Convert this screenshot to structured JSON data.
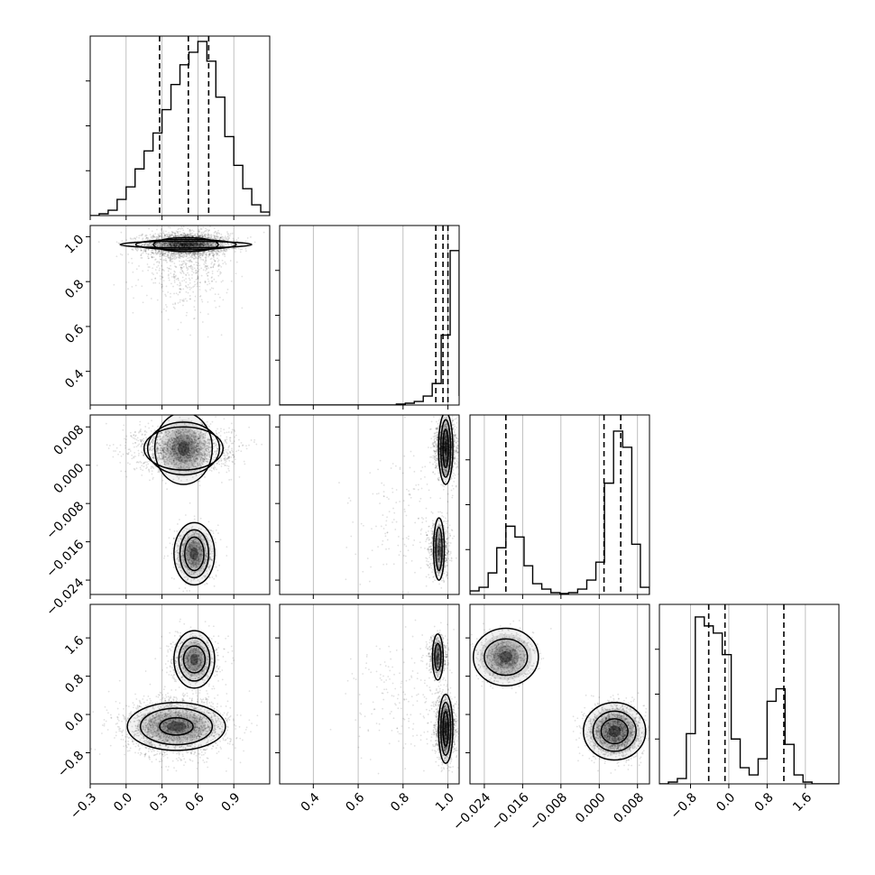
{
  "chart_data": {
    "type": "corner",
    "title": "",
    "params": [
      {
        "name": "",
        "range": [
          -0.3,
          1.2
        ],
        "ticks": [
          -0.3,
          0.0,
          0.3,
          0.6,
          0.9
        ],
        "tick_labels": [
          "−0.3",
          "0.0",
          "0.3",
          "0.6",
          "0.9"
        ],
        "quantiles": [
          0.28,
          0.52,
          0.69
        ]
      },
      {
        "name": "",
        "range": [
          0.25,
          1.05
        ],
        "ticks": [
          0.4,
          0.6,
          0.8,
          1.0
        ],
        "tick_labels": [
          "0.4",
          "0.6",
          "0.8",
          "1.0"
        ],
        "quantiles": [
          0.946,
          0.978,
          1.0
        ]
      },
      {
        "name": "",
        "range": [
          -0.027,
          0.0105
        ],
        "ticks": [
          -0.024,
          -0.016,
          -0.008,
          0.0,
          0.008
        ],
        "tick_labels": [
          "−0.024",
          "−0.016",
          "−0.008",
          "0.000",
          "0.008"
        ],
        "quantiles": [
          -0.0195,
          0.001,
          0.0045
        ]
      },
      {
        "name": "",
        "range": [
          -1.45,
          2.3
        ],
        "ticks": [
          -0.8,
          0.0,
          0.8,
          1.6
        ],
        "tick_labels": [
          "−0.8",
          "0.0",
          "0.8",
          "1.6"
        ],
        "quantiles": [
          -0.42,
          -0.08,
          1.15
        ]
      }
    ],
    "histograms": [
      {
        "param": 0,
        "ylim": [
          0,
          1.0
        ],
        "ymax_tick_count": 3,
        "bin_edges": [
          -0.3,
          -0.225,
          -0.15,
          -0.075,
          0.0,
          0.075,
          0.15,
          0.225,
          0.3,
          0.375,
          0.45,
          0.525,
          0.6,
          0.675,
          0.75,
          0.825,
          0.9,
          0.975,
          1.05,
          1.125,
          1.2
        ],
        "values": [
          0.0,
          0.01,
          0.03,
          0.09,
          0.16,
          0.26,
          0.36,
          0.46,
          0.59,
          0.73,
          0.84,
          0.91,
          0.97,
          0.86,
          0.66,
          0.44,
          0.28,
          0.15,
          0.06,
          0.02
        ]
      },
      {
        "param": 1,
        "ylim": [
          0,
          1.0
        ],
        "bin_edges": [
          0.25,
          0.29,
          0.33,
          0.37,
          0.41,
          0.45,
          0.49,
          0.53,
          0.57,
          0.61,
          0.65,
          0.69,
          0.73,
          0.77,
          0.81,
          0.85,
          0.89,
          0.93,
          0.97,
          1.01,
          1.05
        ],
        "values": [
          0.0,
          0.0,
          0.0,
          0.0,
          0.0,
          0.0,
          0.0,
          0.0,
          0.0,
          0.0,
          0.0,
          0.0,
          0.0,
          0.005,
          0.01,
          0.02,
          0.05,
          0.12,
          0.39,
          0.86,
          0.05
        ]
      },
      {
        "param": 2,
        "ylim": [
          0,
          1.0
        ],
        "bin_edges": [
          -0.027,
          -0.0251,
          -0.0232,
          -0.0214,
          -0.0195,
          -0.0176,
          -0.0157,
          -0.0139,
          -0.012,
          -0.0101,
          -0.0082,
          -0.0064,
          -0.0045,
          -0.0026,
          -0.0007,
          0.0011,
          0.003,
          0.0049,
          0.0068,
          0.0086,
          0.0105
        ],
        "values": [
          0.02,
          0.04,
          0.12,
          0.26,
          0.38,
          0.32,
          0.16,
          0.06,
          0.03,
          0.01,
          0.005,
          0.01,
          0.03,
          0.08,
          0.18,
          0.62,
          0.91,
          0.82,
          0.28,
          0.04
        ]
      },
      {
        "param": 3,
        "ylim": [
          0,
          1.0
        ],
        "bin_edges": [
          -1.45,
          -1.2625,
          -1.075,
          -0.8875,
          -0.7,
          -0.5125,
          -0.325,
          -0.1375,
          0.05,
          0.2375,
          0.425,
          0.6125,
          0.8,
          0.9875,
          1.175,
          1.3625,
          1.55,
          1.7375,
          1.925,
          2.1125,
          2.3
        ],
        "values": [
          0.0,
          0.01,
          0.03,
          0.28,
          0.93,
          0.88,
          0.84,
          0.72,
          0.25,
          0.09,
          0.05,
          0.14,
          0.46,
          0.53,
          0.22,
          0.05,
          0.01,
          0.0,
          0.0,
          0.0
        ]
      }
    ],
    "pairs": [
      {
        "x": 0,
        "y": 1,
        "clusters": [
          {
            "cx": 0.5,
            "cy": 0.965,
            "sx": 0.18,
            "sy": 0.025,
            "n": 2800,
            "levels": [
              [
                0.55,
                0.015
              ],
              [
                0.42,
                0.023
              ],
              [
                0.27,
                0.031
              ]
            ]
          },
          {
            "cx": 0.5,
            "cy": 0.87,
            "sx": 0.18,
            "sy": 0.09,
            "n": 600,
            "levels": []
          }
        ]
      },
      {
        "x": 0,
        "y": 2,
        "clusters": [
          {
            "cx": 0.48,
            "cy": 0.0035,
            "sx": 0.2,
            "sy": 0.0024,
            "n": 2000,
            "levels": [
              [
                0.33,
                0.0045
              ],
              [
                0.3,
                0.0055
              ],
              [
                0.24,
                0.0075
              ]
            ]
          },
          {
            "cx": 0.57,
            "cy": -0.0185,
            "sx": 0.085,
            "sy": 0.0028,
            "n": 900,
            "levels": [
              [
                0.08,
                0.0035
              ],
              [
                0.12,
                0.005
              ],
              [
                0.17,
                0.0065
              ]
            ]
          }
        ]
      },
      {
        "x": 0,
        "y": 3,
        "clusters": [
          {
            "cx": 0.57,
            "cy": 1.15,
            "sx": 0.1,
            "sy": 0.25,
            "n": 800,
            "levels": [
              [
                0.09,
                0.28
              ],
              [
                0.13,
                0.45
              ],
              [
                0.17,
                0.6
              ]
            ]
          },
          {
            "cx": 0.42,
            "cy": -0.25,
            "sx": 0.22,
            "sy": 0.3,
            "n": 2100,
            "levels": [
              [
                0.14,
                0.18
              ],
              [
                0.3,
                0.38
              ],
              [
                0.41,
                0.5
              ]
            ]
          }
        ]
      },
      {
        "x": 1,
        "y": 2,
        "clusters": [
          {
            "cx": 0.99,
            "cy": 0.0035,
            "sx": 0.022,
            "sy": 0.0028,
            "n": 1800,
            "levels": [
              [
                0.012,
                0.004
              ],
              [
                0.022,
                0.006
              ],
              [
                0.032,
                0.0075
              ]
            ]
          },
          {
            "cx": 0.96,
            "cy": -0.0175,
            "sx": 0.022,
            "sy": 0.0028,
            "n": 800,
            "levels": [
              [
                0.014,
                0.0045
              ],
              [
                0.024,
                0.0065
              ]
            ]
          },
          {
            "cx": 0.82,
            "cy": -0.012,
            "sx": 0.12,
            "sy": 0.008,
            "n": 180,
            "levels": []
          }
        ]
      },
      {
        "x": 1,
        "y": 3,
        "clusters": [
          {
            "cx": 0.955,
            "cy": 1.2,
            "sx": 0.02,
            "sy": 0.22,
            "n": 700,
            "levels": [
              [
                0.014,
                0.28
              ],
              [
                0.024,
                0.48
              ]
            ]
          },
          {
            "cx": 0.99,
            "cy": -0.3,
            "sx": 0.022,
            "sy": 0.3,
            "n": 1800,
            "levels": [
              [
                0.012,
                0.36
              ],
              [
                0.022,
                0.55
              ],
              [
                0.032,
                0.72
              ]
            ]
          },
          {
            "cx": 0.8,
            "cy": 0.3,
            "sx": 0.12,
            "sy": 0.6,
            "n": 200,
            "levels": []
          }
        ]
      },
      {
        "x": 2,
        "y": 3,
        "clusters": [
          {
            "cx": -0.0195,
            "cy": 1.2,
            "sx": 0.0028,
            "sy": 0.25,
            "n": 900,
            "levels": [
              [
                0.0045,
                0.38
              ],
              [
                0.0068,
                0.6
              ]
            ]
          },
          {
            "cx": 0.0032,
            "cy": -0.35,
            "sx": 0.0028,
            "sy": 0.28,
            "n": 1800,
            "levels": [
              [
                0.0028,
                0.26
              ],
              [
                0.0045,
                0.42
              ],
              [
                0.0065,
                0.6
              ]
            ]
          }
        ]
      }
    ]
  }
}
